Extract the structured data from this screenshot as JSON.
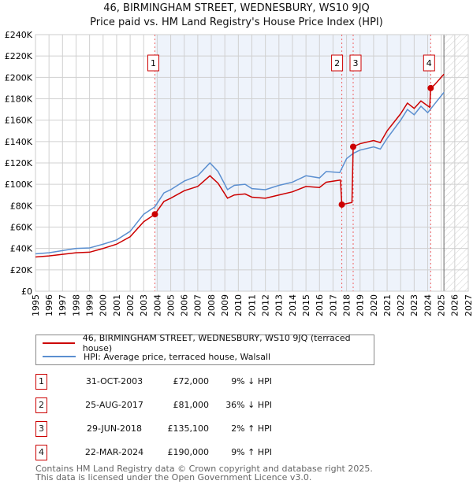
{
  "chart_data": {
    "type": "line",
    "title": "46, BIRMINGHAM STREET, WEDNESBURY, WS10 9JQ",
    "subtitle": "Price paid vs. HM Land Registry's House Price Index (HPI)",
    "xlim": [
      1995,
      2027
    ],
    "ylim": [
      0,
      240000
    ],
    "x_ticks": [
      "1995",
      "1996",
      "1997",
      "1998",
      "1999",
      "2000",
      "2001",
      "2002",
      "2003",
      "2004",
      "2005",
      "2006",
      "2007",
      "2008",
      "2009",
      "2010",
      "2011",
      "2012",
      "2013",
      "2014",
      "2015",
      "2016",
      "2017",
      "2018",
      "2019",
      "2020",
      "2021",
      "2022",
      "2023",
      "2024",
      "2025",
      "2026",
      "2027"
    ],
    "y_ticks": [
      "£0",
      "£20K",
      "£40K",
      "£60K",
      "£80K",
      "£100K",
      "£120K",
      "£140K",
      "£160K",
      "£180K",
      "£200K",
      "£220K",
      "£240K"
    ],
    "series": [
      {
        "name": "46, BIRMINGHAM STREET, WEDNESBURY, WS10 9JQ (terraced house)",
        "color": "#cc0000",
        "x": [
          1995,
          1996,
          1997,
          1998,
          1999,
          2000,
          2001,
          2002,
          2003,
          2003.83,
          2004.5,
          2005,
          2006,
          2007,
          2007.9,
          2008.5,
          2009.2,
          2009.7,
          2010.5,
          2011,
          2012,
          2013,
          2014,
          2015,
          2016,
          2016.5,
          2017.55,
          2017.65,
          2018.4,
          2018.49,
          2019,
          2020,
          2020.5,
          2021,
          2022,
          2022.5,
          2023,
          2023.5,
          2024.15,
          2024.22,
          2024.5,
          2025.2
        ],
        "y": [
          32000,
          33000,
          34500,
          36000,
          36500,
          40000,
          44000,
          51000,
          65000,
          72000,
          84000,
          87000,
          94000,
          98000,
          108000,
          101000,
          87000,
          90000,
          91000,
          88000,
          87000,
          90000,
          93000,
          98000,
          97000,
          102000,
          104000,
          81000,
          83000,
          135100,
          138000,
          141000,
          139000,
          150000,
          166000,
          176000,
          171000,
          178000,
          172000,
          190000,
          193000,
          203000
        ]
      },
      {
        "name": "HPI: Average price, terraced house, Walsall",
        "color": "#5b8fd0",
        "x": [
          1995,
          1996,
          1997,
          1998,
          1999,
          2000,
          2001,
          2002,
          2003,
          2003.83,
          2004.5,
          2005,
          2006,
          2007,
          2007.9,
          2008.5,
          2009.2,
          2009.7,
          2010.5,
          2011,
          2012,
          2013,
          2014,
          2015,
          2016,
          2016.5,
          2017.5,
          2018,
          2018.5,
          2019,
          2020,
          2020.5,
          2021,
          2022,
          2022.5,
          2023,
          2023.5,
          2024,
          2024.5,
          2025.2
        ],
        "y": [
          35000,
          36000,
          38000,
          40000,
          40500,
          44000,
          48000,
          56000,
          72000,
          79000,
          92000,
          95000,
          103000,
          108000,
          120000,
          112000,
          95000,
          99000,
          100000,
          96000,
          95000,
          99000,
          102000,
          108000,
          106000,
          112000,
          111000,
          124000,
          129000,
          132000,
          135000,
          133000,
          143000,
          160000,
          170000,
          165000,
          173000,
          167000,
          175000,
          186000
        ]
      }
    ],
    "sales": [
      {
        "label": "1",
        "x": 2003.83,
        "y": 72000
      },
      {
        "label": "2",
        "x": 2017.65,
        "y": 81000
      },
      {
        "label": "3",
        "x": 2018.49,
        "y": 135100
      },
      {
        "label": "4",
        "x": 2024.22,
        "y": 190000
      }
    ],
    "forecast_start": 2025.2
  },
  "legend": {
    "property": "46, BIRMINGHAM STREET, WEDNESBURY, WS10 9JQ (terraced house)",
    "hpi": "HPI: Average price, terraced house, Walsall"
  },
  "table": [
    {
      "n": "1",
      "date": "31-OCT-2003",
      "price": "£72,000",
      "delta": "9% ↓ HPI"
    },
    {
      "n": "2",
      "date": "25-AUG-2017",
      "price": "£81,000",
      "delta": "36% ↓ HPI"
    },
    {
      "n": "3",
      "date": "29-JUN-2018",
      "price": "£135,100",
      "delta": "2% ↑ HPI"
    },
    {
      "n": "4",
      "date": "22-MAR-2024",
      "price": "£190,000",
      "delta": "9% ↑ HPI"
    }
  ],
  "footer": {
    "line1": "Contains HM Land Registry data © Crown copyright and database right 2025.",
    "line2": "This data is licensed under the Open Government Licence v3.0."
  }
}
